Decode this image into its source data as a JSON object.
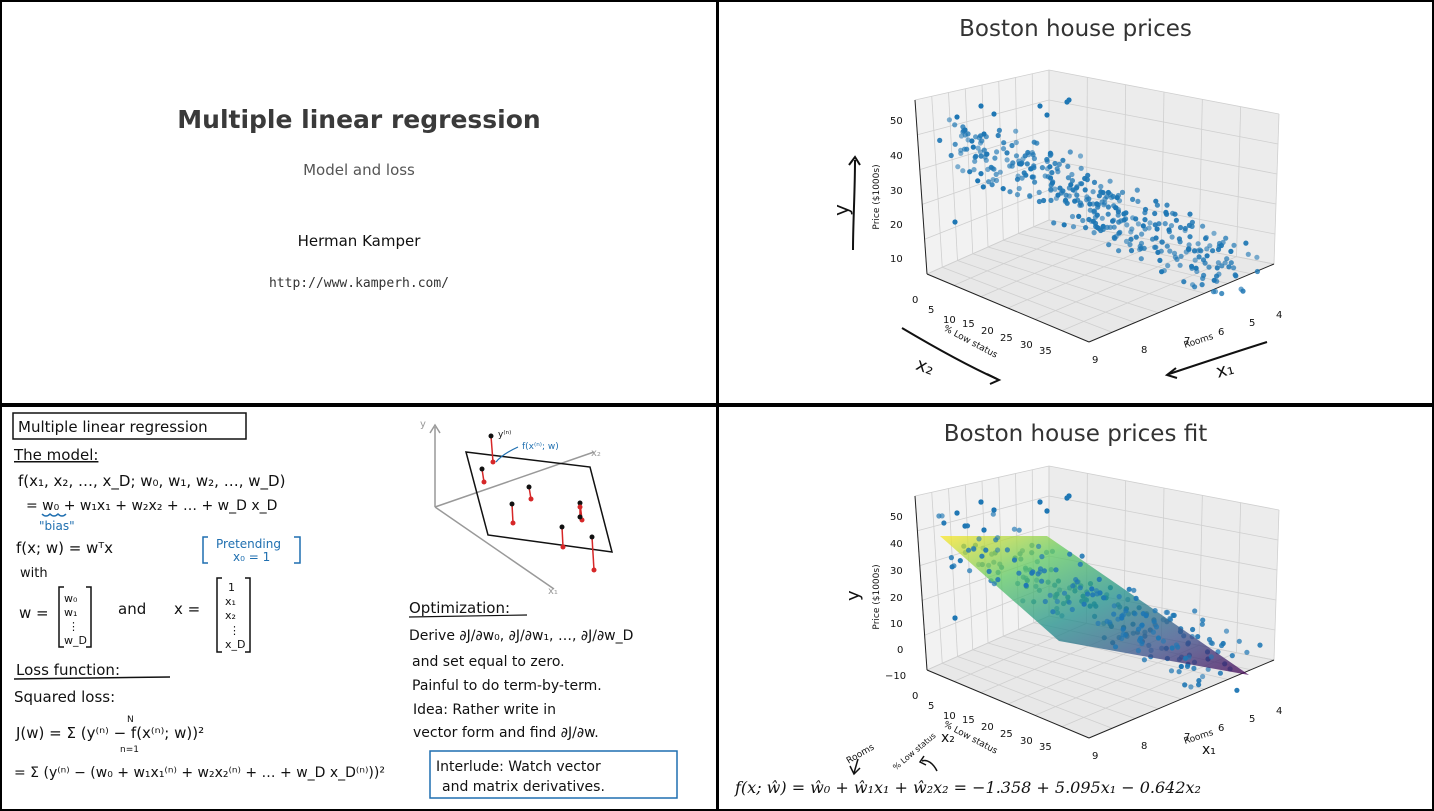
{
  "title_slide": {
    "title": "Multiple linear regression",
    "subtitle": "Model and loss",
    "author": "Herman Kamper",
    "url": "http://www.kamperh.com/"
  },
  "scatter_slide": {
    "title": "Boston house prices",
    "z_label": "Price ($1000s)",
    "x2_label": "% Low status",
    "x1_label": "Rooms",
    "z_ticks": [
      "50",
      "40",
      "30",
      "20",
      "10"
    ],
    "x2_ticks": [
      "0",
      "5",
      "10",
      "15",
      "20",
      "25",
      "30",
      "35"
    ],
    "x1_ticks": [
      "9",
      "8",
      "7",
      "6",
      "5",
      "4"
    ],
    "annot_y": "y",
    "annot_x2": "x₂",
    "annot_x1": "x₁"
  },
  "fit_slide": {
    "title": "Boston house prices fit",
    "z_label": "Price ($1000s)",
    "x2_label": "% Low status",
    "x1_label": "Rooms",
    "z_ticks": [
      "50",
      "40",
      "30",
      "20",
      "10",
      "0",
      "−10"
    ],
    "x2_ticks": [
      "0",
      "5",
      "10",
      "15",
      "20",
      "25",
      "30",
      "35"
    ],
    "x1_ticks": [
      "9",
      "8",
      "7",
      "6",
      "5",
      "4"
    ],
    "annot_y": "y",
    "annot_x2": "x₂",
    "annot_x1": "x₁",
    "annot_rooms": "Rooms",
    "annot_low": "% Low status",
    "formula": "f(x; ŵ) = ŵ₀ + ŵ₁x₁ + ŵ₂x₂ = −1.358 + 5.095x₁ − 0.642x₂"
  },
  "notes_slide": {
    "heading": "Multiple linear regression",
    "model_heading": "The model:",
    "model_line1": "f(x₁, x₂, …, x_D; w₀, w₁, w₂, …, w_D)",
    "model_line2": "= w₀ + w₁x₁ + w₂x₂ + … + w_D x_D",
    "bias": "\"bias\"",
    "vec_line": "f(x; w) = wᵀx",
    "pretending1": "Pretending",
    "pretending2": "x₀ = 1",
    "with": "with",
    "w_def": "w =",
    "and": "and",
    "x_def": "x =",
    "w_vec": [
      "w₀",
      "w₁",
      "⋮",
      "w_D"
    ],
    "x_vec": [
      "1",
      "x₁",
      "x₂",
      "⋮",
      "x_D"
    ],
    "loss_heading": "Loss function:",
    "squared": "Squared loss:",
    "loss_eq": "J(w) = Σ (y⁽ⁿ⁾ − f(x⁽ⁿ⁾; w))²",
    "loss_eq2": "= Σ (y⁽ⁿ⁾ − (w₀ + w₁x₁⁽ⁿ⁾ + w₂x₂⁽ⁿ⁾ + … + w_D x_D⁽ⁿ⁾))²",
    "sum_top": "N",
    "sum_bot": "n=1",
    "diagram_y": "y",
    "diagram_x1": "x₁",
    "diagram_x2": "x₂",
    "diagram_yn": "y⁽ⁿ⁾",
    "diagram_f": "f(x⁽ⁿ⁾; w)",
    "opt_heading": "Optimization:",
    "opt1": "Derive ∂J/∂w₀, ∂J/∂w₁, …, ∂J/∂w_D",
    "opt2": "and set equal to zero.",
    "opt3": "Painful to do term-by-term.",
    "opt4": "Idea: Rather write in",
    "opt5": "vector form and find ∂J/∂w.",
    "interlude1": "Interlude: Watch vector",
    "interlude2": "and matrix derivatives."
  },
  "colors": {
    "point": "#1f77b4",
    "red": "#d62728",
    "blue_ink": "#1f6fb0"
  }
}
